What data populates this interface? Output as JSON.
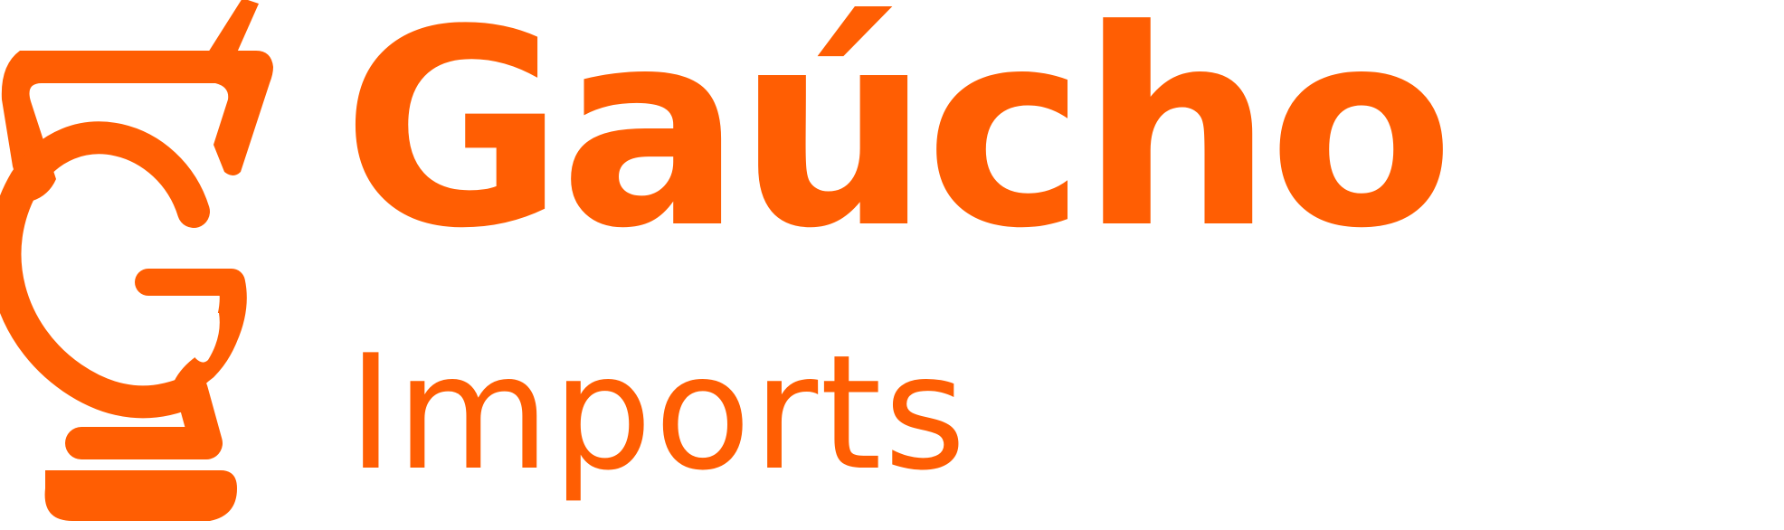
{
  "brand": {
    "name": "Gaúcho",
    "tagline": "Imports",
    "emblem_icon": "mortar-pestle-g-icon",
    "color": "#ff5e03"
  }
}
